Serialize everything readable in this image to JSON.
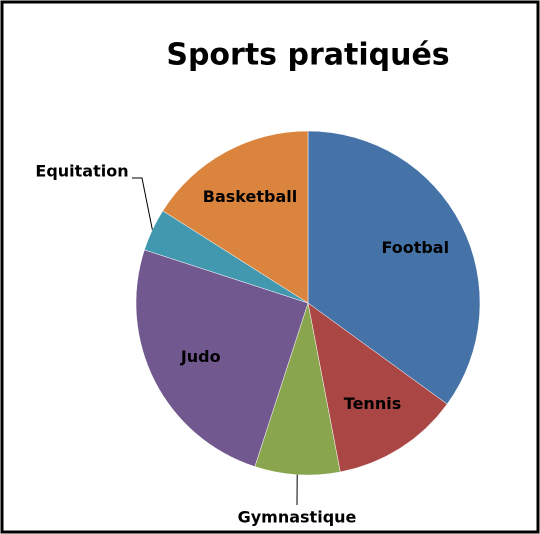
{
  "chart_data": {
    "type": "pie",
    "title": "Sports pratiqués",
    "categories": [
      "Footbal",
      "Tennis",
      "Gymnastique",
      "Judo",
      "Equitation",
      "Basketball"
    ],
    "values": [
      35,
      12,
      8,
      25,
      4,
      16
    ],
    "colors": [
      "#4572a7",
      "#aa4643",
      "#89a54e",
      "#71588f",
      "#4198af",
      "#db843d"
    ]
  }
}
